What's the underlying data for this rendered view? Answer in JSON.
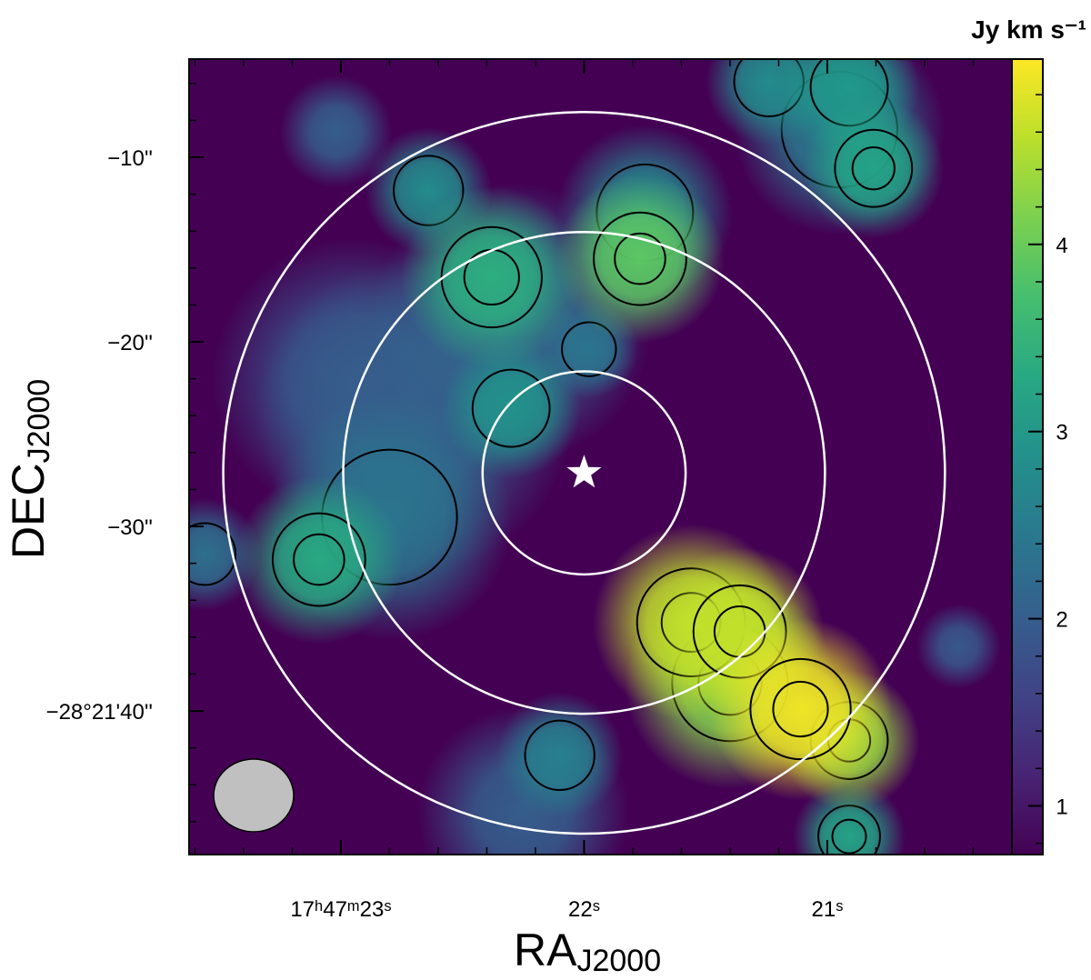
{
  "chart_data": {
    "type": "image",
    "xlabel": "RA",
    "xlabel_sub": "J2000",
    "ylabel": "DEC",
    "ylabel_sub": "J2000",
    "colorbar_label": "Jy km s⁻¹",
    "xlim": [
      23.624,
      20.241
    ],
    "xticks": [
      {
        "value": 23,
        "label": "17ʰ47ᵐ23ˢ"
      },
      {
        "value": 22,
        "label": "22ˢ"
      },
      {
        "value": 21,
        "label": "21ˢ"
      }
    ],
    "xminorticks": [
      23.6,
      23.4,
      23.2,
      22.8,
      22.6,
      22.4,
      22.2,
      21.8,
      21.6,
      21.4,
      21.2,
      20.8,
      20.6,
      20.4
    ],
    "ylim": [
      -47.78,
      -4.68
    ],
    "yticks": [
      {
        "value": -10,
        "label": "−10''"
      },
      {
        "value": -20,
        "label": "−20''"
      },
      {
        "value": -30,
        "label": "−30''"
      },
      {
        "value": -40,
        "label": "−28°21'40''"
      }
    ],
    "yminorticks": [
      -6,
      -8,
      -12,
      -14,
      -16,
      -18,
      -22,
      -24,
      -26,
      -28,
      -32,
      -34,
      -36,
      -38,
      -42,
      -44,
      -46
    ],
    "clim": [
      0.74,
      4.99
    ],
    "cticks": [
      1,
      2,
      3,
      4
    ],
    "cminorticks": [
      0.8,
      1.2,
      1.4,
      1.6,
      1.8,
      2.2,
      2.4,
      2.6,
      2.8,
      3.2,
      3.4,
      3.6,
      3.8,
      4.2,
      4.4,
      4.6,
      4.8
    ],
    "colormap": "viridis",
    "clumps": {
      "ra": [
        21.11,
        21.56,
        21.36,
        20.91,
        21.77,
        22.38,
        23.09,
        20.81,
        20.91,
        21.24,
        22.64,
        22.3,
        20.91,
        22.1,
        21.98,
        23.56,
        23.02,
        20.46,
        22.8,
        22.7,
        22.3,
        21.75,
        21.4,
        22.95,
        20.95,
        22.25
      ],
      "dec": [
        -39.9,
        -35.2,
        -35.7,
        -41.6,
        -15.5,
        -16.5,
        -31.8,
        -10.6,
        -6.2,
        -5.9,
        -11.8,
        -23.6,
        -46.8,
        -42.4,
        -20.4,
        -31.5,
        -8.6,
        -36.5,
        -29.5,
        -24.0,
        -19.0,
        -13.0,
        -38.5,
        -22.0,
        -8.5,
        -45.5
      ],
      "peak": [
        4.9,
        4.6,
        4.6,
        4.3,
        3.9,
        3.4,
        3.3,
        3.2,
        3.0,
        2.8,
        2.8,
        2.9,
        3.2,
        2.6,
        2.4,
        2.3,
        2.0,
        1.9,
        2.4,
        2.0,
        2.1,
        2.7,
        4.2,
        1.9,
        2.5,
        2.0
      ],
      "size": [
        2.6,
        2.8,
        2.4,
        2.0,
        2.4,
        2.6,
        2.4,
        2.0,
        2.0,
        1.8,
        1.8,
        2.0,
        1.6,
        1.8,
        1.4,
        1.6,
        1.6,
        1.2,
        3.5,
        4.5,
        4.0,
        2.5,
        3.0,
        4.0,
        3.0,
        3.0
      ]
    },
    "star": {
      "ra": 22.0,
      "dec": -27.1
    },
    "circle_radii": [
      5.5,
      13.05,
      19.55
    ]
  }
}
